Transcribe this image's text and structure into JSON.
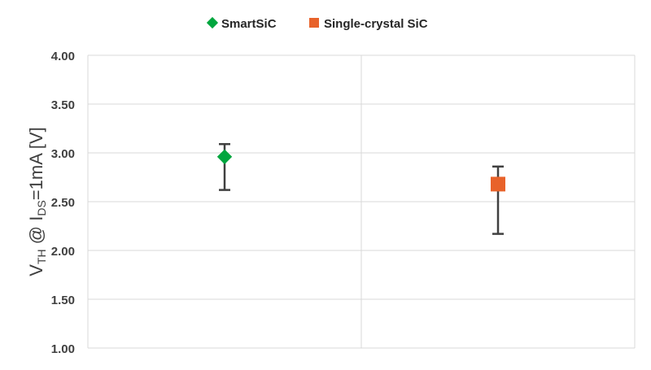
{
  "chart_data": {
    "type": "scatter",
    "title": "",
    "xlabel": "",
    "ylabel": {
      "main": "V",
      "sub1": "TH",
      "mid": " @ I",
      "sub2": "DS",
      "tail": "=1mA [V]"
    },
    "ylim": [
      1.0,
      4.0
    ],
    "yticks": [
      "1.00",
      "1.50",
      "2.00",
      "2.50",
      "3.00",
      "3.50",
      "4.00"
    ],
    "grid": true,
    "legend_position": "top",
    "series": [
      {
        "name": "SmartSiC",
        "marker": "diamond",
        "color": "#00A63E",
        "value": 2.96,
        "error_high": 3.09,
        "error_low": 2.62
      },
      {
        "name": "Single-crystal SiC",
        "marker": "square",
        "color": "#E8622A",
        "value": 2.68,
        "error_high": 2.86,
        "error_low": 2.17
      }
    ]
  }
}
